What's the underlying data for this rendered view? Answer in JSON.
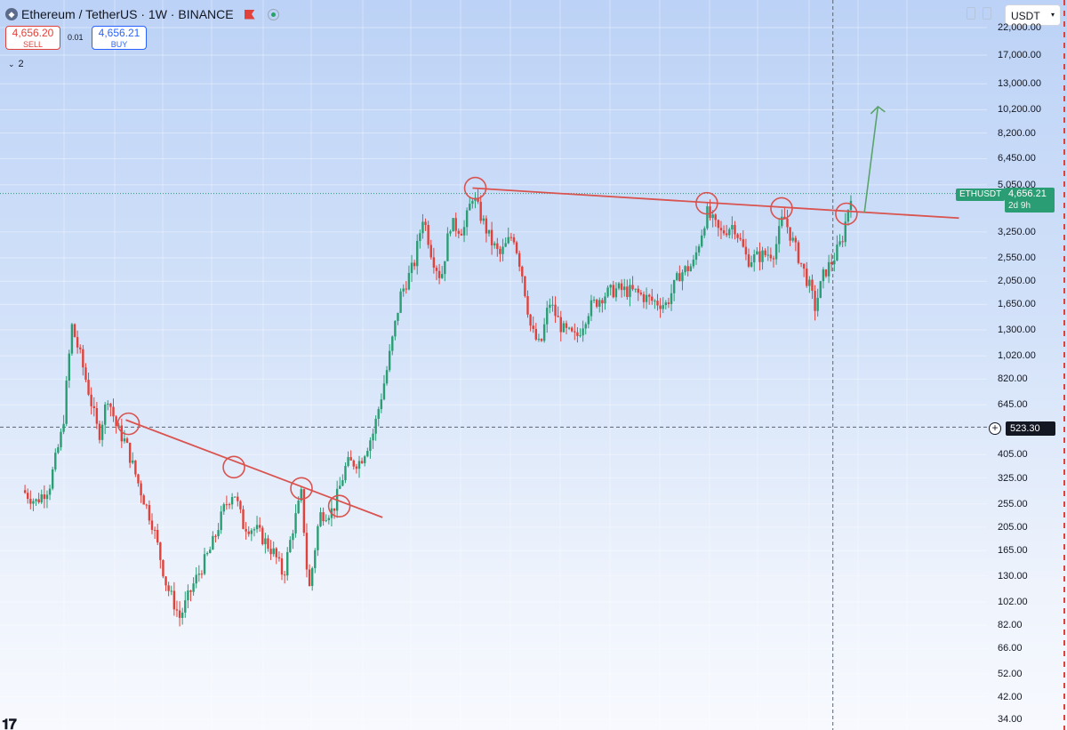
{
  "header": {
    "title": "Ethereum / TetherUS · 1W · BINANCE",
    "sell_price": "4,656.20",
    "sell_label": "SELL",
    "buy_price": "4,656.21",
    "buy_label": "BUY",
    "spread": "0.01",
    "indicators_count": "2"
  },
  "currency_select": "USDT",
  "symbol_tag": "ETHUSDT",
  "last_price": "4,656.21",
  "countdown": "2d 9h",
  "crosshair_price": "523.30",
  "colors": {
    "up": "#2a9d74",
    "down": "#e0413a",
    "trendline": "#d9534f",
    "arrow": "#5aa36a"
  },
  "chart_data": {
    "type": "candlestick",
    "symbol": "ETHUSDT",
    "interval": "1W",
    "scale": "log",
    "y_ticks": [
      "22,000.00",
      "17,000.00",
      "13,000.00",
      "10,200.00",
      "8,200.00",
      "6,450.00",
      "5,050.00",
      "3,250.00",
      "2,550.00",
      "2,050.00",
      "1,650.00",
      "1,300.00",
      "1,020.00",
      "820.00",
      "645.00",
      "405.00",
      "325.00",
      "255.00",
      "205.00",
      "165.00",
      "130.00",
      "102.00",
      "82.00",
      "66.00",
      "52.00",
      "42.00",
      "34.00"
    ],
    "price_path": [
      {
        "t": 0.0,
        "p": 290
      },
      {
        "t": 0.015,
        "p": 260
      },
      {
        "t": 0.03,
        "p": 300
      },
      {
        "t": 0.045,
        "p": 520
      },
      {
        "t": 0.055,
        "p": 1350
      },
      {
        "t": 0.065,
        "p": 1000
      },
      {
        "t": 0.075,
        "p": 700
      },
      {
        "t": 0.085,
        "p": 480
      },
      {
        "t": 0.095,
        "p": 700
      },
      {
        "t": 0.105,
        "p": 520
      },
      {
        "t": 0.115,
        "p": 450
      },
      {
        "t": 0.13,
        "p": 300
      },
      {
        "t": 0.145,
        "p": 210
      },
      {
        "t": 0.16,
        "p": 120
      },
      {
        "t": 0.175,
        "p": 88
      },
      {
        "t": 0.19,
        "p": 120
      },
      {
        "t": 0.21,
        "p": 170
      },
      {
        "t": 0.225,
        "p": 250
      },
      {
        "t": 0.235,
        "p": 290
      },
      {
        "t": 0.245,
        "p": 210
      },
      {
        "t": 0.26,
        "p": 200
      },
      {
        "t": 0.28,
        "p": 160
      },
      {
        "t": 0.29,
        "p": 130
      },
      {
        "t": 0.3,
        "p": 200
      },
      {
        "t": 0.31,
        "p": 280
      },
      {
        "t": 0.318,
        "p": 110
      },
      {
        "t": 0.33,
        "p": 230
      },
      {
        "t": 0.345,
        "p": 240
      },
      {
        "t": 0.36,
        "p": 370
      },
      {
        "t": 0.375,
        "p": 380
      },
      {
        "t": 0.39,
        "p": 500
      },
      {
        "t": 0.405,
        "p": 900
      },
      {
        "t": 0.42,
        "p": 1800
      },
      {
        "t": 0.435,
        "p": 2400
      },
      {
        "t": 0.445,
        "p": 3800
      },
      {
        "t": 0.455,
        "p": 2600
      },
      {
        "t": 0.465,
        "p": 2100
      },
      {
        "t": 0.475,
        "p": 3500
      },
      {
        "t": 0.49,
        "p": 3300
      },
      {
        "t": 0.5,
        "p": 4600
      },
      {
        "t": 0.51,
        "p": 3700
      },
      {
        "t": 0.52,
        "p": 3000
      },
      {
        "t": 0.53,
        "p": 2600
      },
      {
        "t": 0.545,
        "p": 3200
      },
      {
        "t": 0.555,
        "p": 2200
      },
      {
        "t": 0.565,
        "p": 1300
      },
      {
        "t": 0.575,
        "p": 1100
      },
      {
        "t": 0.585,
        "p": 1700
      },
      {
        "t": 0.6,
        "p": 1300
      },
      {
        "t": 0.615,
        "p": 1200
      },
      {
        "t": 0.63,
        "p": 1600
      },
      {
        "t": 0.645,
        "p": 1800
      },
      {
        "t": 0.66,
        "p": 1900
      },
      {
        "t": 0.68,
        "p": 1850
      },
      {
        "t": 0.7,
        "p": 1700
      },
      {
        "t": 0.715,
        "p": 1650
      },
      {
        "t": 0.73,
        "p": 2200
      },
      {
        "t": 0.745,
        "p": 2400
      },
      {
        "t": 0.76,
        "p": 3900
      },
      {
        "t": 0.775,
        "p": 3200
      },
      {
        "t": 0.79,
        "p": 3500
      },
      {
        "t": 0.805,
        "p": 2500
      },
      {
        "t": 0.82,
        "p": 2600
      },
      {
        "t": 0.835,
        "p": 2700
      },
      {
        "t": 0.845,
        "p": 3800
      },
      {
        "t": 0.855,
        "p": 3000
      },
      {
        "t": 0.865,
        "p": 2400
      },
      {
        "t": 0.875,
        "p": 1900
      },
      {
        "t": 0.88,
        "p": 1600
      },
      {
        "t": 0.89,
        "p": 2200
      },
      {
        "t": 0.9,
        "p": 2500
      },
      {
        "t": 0.91,
        "p": 3000
      },
      {
        "t": 0.92,
        "p": 4656
      }
    ],
    "trendlines": [
      {
        "name": "descending-resistance",
        "from": {
          "t": 0.115,
          "p": 560
        },
        "to": {
          "t": 0.4,
          "p": 225
        }
      },
      {
        "name": "horizontal-resistance",
        "from": {
          "t": 0.5,
          "p": 4900
        },
        "to": {
          "t": 1.04,
          "p": 3700
        }
      }
    ],
    "touch_points": [
      {
        "t": 0.118,
        "p": 540
      },
      {
        "t": 0.235,
        "p": 360
      },
      {
        "t": 0.31,
        "p": 295
      },
      {
        "t": 0.352,
        "p": 250
      },
      {
        "t": 0.503,
        "p": 4900
      },
      {
        "t": 0.76,
        "p": 4250
      },
      {
        "t": 0.843,
        "p": 4050
      },
      {
        "t": 0.915,
        "p": 3850
      }
    ],
    "breakout_arrow": {
      "from": {
        "t": 0.935,
        "p": 3900
      },
      "to": {
        "t": 0.95,
        "p": 10500
      }
    },
    "last_price": 4656.21,
    "crosshair_price": 523.3
  }
}
